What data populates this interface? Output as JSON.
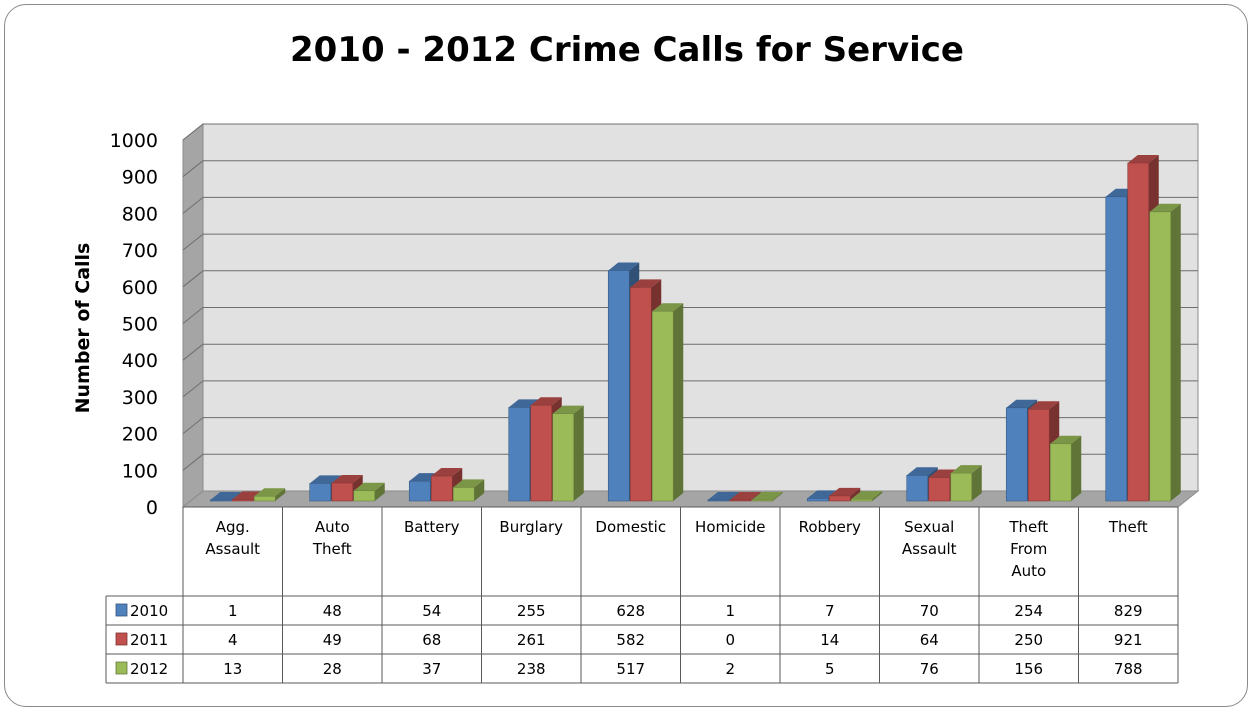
{
  "chart_data": {
    "type": "bar",
    "title": "2010 - 2012 Crime Calls for Service",
    "xlabel": "",
    "ylabel": "Number of Calls",
    "ylim": [
      0,
      1000
    ],
    "y_ticks": [
      0,
      100,
      200,
      300,
      400,
      500,
      600,
      700,
      800,
      900,
      1000
    ],
    "grid": true,
    "legend": "data-table",
    "categories": [
      "Agg. Assault",
      "Auto Theft",
      "Battery",
      "Burglary",
      "Domestic",
      "Homicide",
      "Robbery",
      "Sexual Assault",
      "Theft From Auto",
      "Theft"
    ],
    "category_lines": [
      [
        "Agg.",
        "Assault"
      ],
      [
        "Auto",
        "Theft"
      ],
      [
        "Battery"
      ],
      [
        "Burglary"
      ],
      [
        "Domestic"
      ],
      [
        "Homicide"
      ],
      [
        "Robbery"
      ],
      [
        "Sexual",
        "Assault"
      ],
      [
        "Theft",
        "From",
        "Auto"
      ],
      [
        "Theft"
      ]
    ],
    "series": [
      {
        "name": "2010",
        "color": "#4f81bd",
        "values": [
          1,
          48,
          54,
          255,
          628,
          1,
          7,
          70,
          254,
          829
        ]
      },
      {
        "name": "2011",
        "color": "#c0504d",
        "values": [
          4,
          49,
          68,
          261,
          582,
          0,
          14,
          64,
          250,
          921
        ]
      },
      {
        "name": "2012",
        "color": "#9bbb59",
        "values": [
          13,
          28,
          37,
          238,
          517,
          2,
          5,
          76,
          156,
          788
        ]
      }
    ]
  }
}
